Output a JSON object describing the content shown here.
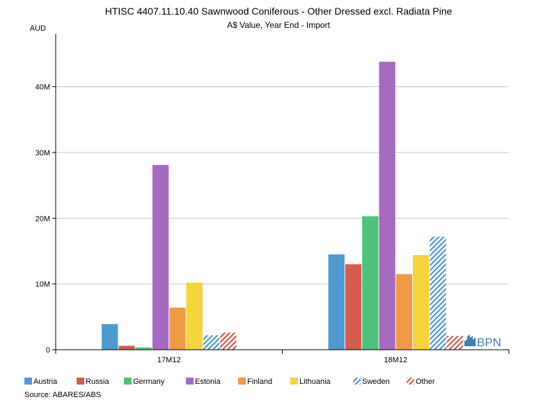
{
  "chart_data": {
    "type": "bar",
    "title": "HTISC 4407.11.10.40 Sawnwood Coniferous - Other Dressed excl. Radiata Pine",
    "subtitle": "A$ Value, Year End - Import",
    "ylabel": "AUD",
    "categories": [
      "17M12",
      "18M12"
    ],
    "ylim": [
      0,
      48000000
    ],
    "yticks": [
      0,
      10000000,
      20000000,
      30000000,
      40000000
    ],
    "ytick_labels": [
      "0",
      "10M",
      "20M",
      "30M",
      "40M"
    ],
    "grid": true,
    "legend_position": "bottom",
    "series": [
      {
        "name": "Austria",
        "color": "#4e9ad0",
        "pattern": "solid",
        "values": [
          3900000,
          14500000
        ]
      },
      {
        "name": "Russia",
        "color": "#d45c4e",
        "pattern": "solid",
        "values": [
          600000,
          13000000
        ]
      },
      {
        "name": "Germany",
        "color": "#4dc27b",
        "pattern": "solid",
        "values": [
          350000,
          20300000
        ]
      },
      {
        "name": "Estonia",
        "color": "#a56bc0",
        "pattern": "solid",
        "values": [
          28100000,
          43800000
        ]
      },
      {
        "name": "Finland",
        "color": "#ef9a46",
        "pattern": "solid",
        "values": [
          6400000,
          11500000
        ]
      },
      {
        "name": "Lithuania",
        "color": "#f5d33a",
        "pattern": "solid",
        "values": [
          10200000,
          14400000
        ]
      },
      {
        "name": "Sweden",
        "color": "#4e9ad0",
        "pattern": "hatch",
        "values": [
          2200000,
          17200000
        ]
      },
      {
        "name": "Other",
        "color": "#d45c4e",
        "pattern": "hatch",
        "values": [
          2600000,
          2100000
        ]
      }
    ]
  },
  "source": "Source: ABARES/ABS",
  "logo": {
    "text": "BPN",
    "color": "#3f7fb8"
  }
}
